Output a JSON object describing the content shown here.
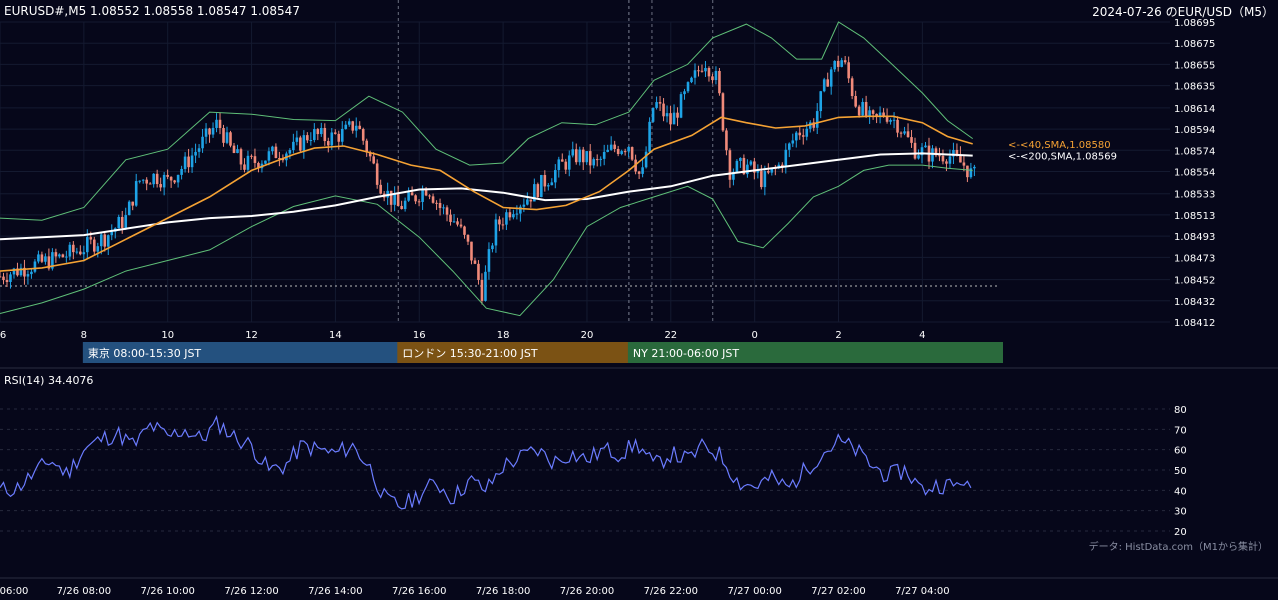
{
  "header": {
    "ohlc": "EURUSD#,M5 1.08552 1.08558 1.08547 1.08547",
    "title_right": "2024-07-26 のEUR/USD（M5）"
  },
  "sessions": [
    {
      "label": "東京 08:00-15:30 JST",
      "color": "#24517f"
    },
    {
      "label": "ロンドン 15:30-21:00 JST",
      "color": "#7b5214"
    },
    {
      "label": "NY 21:00-06:00 JST",
      "color": "#2a6a3c"
    }
  ],
  "rsi": {
    "label": "RSI(14) 34.4076"
  },
  "source_note": "データ: HistData.com（M1から集計）",
  "colors": {
    "bull": "#1ea3e6",
    "bear": "#f08a7a",
    "sma40": "#f5a234",
    "sma200": "#ffffff",
    "bollinger": "#5fbf78",
    "rsi": "#6b7cff"
  },
  "chart_data": [
    {
      "type": "candlestick",
      "ylim": [
        1.08412,
        1.08695
      ],
      "y_ticks": [
        "1.08695",
        "1.08675",
        "1.08655",
        "1.08635",
        "1.08614",
        "1.08594",
        "1.08574",
        "1.08554",
        "1.08533",
        "1.08513",
        "1.08493",
        "1.08473",
        "1.08452",
        "1.08432",
        "1.08412"
      ],
      "x_ticks": [
        "6",
        "8",
        "10",
        "12",
        "14",
        "16",
        "18",
        "20",
        "22",
        "0",
        "2",
        "4"
      ],
      "horizontal_ref_level": 1.08446,
      "annotations": [
        {
          "text": "<-<40,SMA,1.08580",
          "value": 1.0858,
          "color": "#f5a234"
        },
        {
          "text": "<-<200,SMA,1.08569",
          "value": 1.08569,
          "color": "#ffffff"
        }
      ],
      "close_path": [
        [
          6.0,
          1.08455
        ],
        [
          6.5,
          1.08462
        ],
        [
          7.0,
          1.08468
        ],
        [
          7.5,
          1.08474
        ],
        [
          8.0,
          1.08482
        ],
        [
          8.5,
          1.08492
        ],
        [
          9.0,
          1.0851
        ],
        [
          9.3,
          1.08545
        ],
        [
          9.7,
          1.0855
        ],
        [
          10.0,
          1.08545
        ],
        [
          10.4,
          1.0856
        ],
        [
          10.8,
          1.0858
        ],
        [
          11.2,
          1.086
        ],
        [
          11.5,
          1.08575
        ],
        [
          11.8,
          1.0856
        ],
        [
          12.2,
          1.08565
        ],
        [
          12.6,
          1.08572
        ],
        [
          13.0,
          1.08575
        ],
        [
          13.4,
          1.0859
        ],
        [
          13.8,
          1.08585
        ],
        [
          14.2,
          1.0859
        ],
        [
          14.5,
          1.086
        ],
        [
          14.8,
          1.0857
        ],
        [
          15.1,
          1.0854
        ],
        [
          15.5,
          1.0852
        ],
        [
          15.9,
          1.0853
        ],
        [
          16.2,
          1.0854
        ],
        [
          16.5,
          1.0852
        ],
        [
          16.9,
          1.08505
        ],
        [
          17.2,
          1.0848
        ],
        [
          17.5,
          1.0844
        ],
        [
          17.8,
          1.085
        ],
        [
          18.2,
          1.0852
        ],
        [
          18.6,
          1.0853
        ],
        [
          19.0,
          1.08545
        ],
        [
          19.4,
          1.0856
        ],
        [
          19.8,
          1.0857
        ],
        [
          20.2,
          1.0856
        ],
        [
          20.6,
          1.08575
        ],
        [
          21.0,
          1.0858
        ],
        [
          21.3,
          1.08545
        ],
        [
          21.6,
          1.0862
        ],
        [
          22.0,
          1.086
        ],
        [
          22.4,
          1.0863
        ],
        [
          22.8,
          1.0866
        ],
        [
          23.1,
          1.0864
        ],
        [
          23.4,
          1.08555
        ],
        [
          23.8,
          1.0856
        ],
        [
          24.2,
          1.08545
        ],
        [
          24.6,
          1.0856
        ],
        [
          25.0,
          1.0859
        ],
        [
          25.4,
          1.086
        ],
        [
          25.8,
          1.0865
        ],
        [
          26.1,
          1.0866
        ],
        [
          26.4,
          1.0862
        ],
        [
          26.8,
          1.086
        ],
        [
          27.1,
          1.0861
        ],
        [
          27.4,
          1.086
        ],
        [
          27.8,
          1.08575
        ],
        [
          28.2,
          1.0857
        ],
        [
          28.6,
          1.0857
        ],
        [
          29.0,
          1.0856
        ],
        [
          29.2,
          1.0855
        ]
      ],
      "sma40": [
        [
          6.0,
          1.0846
        ],
        [
          7.0,
          1.08463
        ],
        [
          8.0,
          1.0847
        ],
        [
          9.0,
          1.0849
        ],
        [
          10.0,
          1.0851
        ],
        [
          11.0,
          1.0853
        ],
        [
          12.0,
          1.08555
        ],
        [
          13.0,
          1.0857
        ],
        [
          13.5,
          1.08576
        ],
        [
          14.2,
          1.08578
        ],
        [
          15.0,
          1.0857
        ],
        [
          15.8,
          1.0856
        ],
        [
          16.5,
          1.08555
        ],
        [
          17.3,
          1.08535
        ],
        [
          18.0,
          1.0852
        ],
        [
          18.8,
          1.08518
        ],
        [
          19.5,
          1.08522
        ],
        [
          20.3,
          1.08535
        ],
        [
          21.0,
          1.08555
        ],
        [
          21.6,
          1.08575
        ],
        [
          22.5,
          1.08588
        ],
        [
          23.2,
          1.08605
        ],
        [
          23.8,
          1.086
        ],
        [
          24.5,
          1.08595
        ],
        [
          25.2,
          1.08597
        ],
        [
          26.0,
          1.08605
        ],
        [
          26.7,
          1.08606
        ],
        [
          27.3,
          1.08606
        ],
        [
          28.0,
          1.086
        ],
        [
          28.6,
          1.08587
        ],
        [
          29.2,
          1.0858
        ]
      ],
      "sma200": [
        [
          6.0,
          1.0849
        ],
        [
          7.0,
          1.08492
        ],
        [
          8.0,
          1.08494
        ],
        [
          9.0,
          1.085
        ],
        [
          10.0,
          1.08506
        ],
        [
          11.0,
          1.0851
        ],
        [
          12.0,
          1.08512
        ],
        [
          13.0,
          1.08516
        ],
        [
          14.0,
          1.08522
        ],
        [
          15.0,
          1.0853
        ],
        [
          16.0,
          1.08537
        ],
        [
          17.0,
          1.08538
        ],
        [
          18.0,
          1.08534
        ],
        [
          19.0,
          1.08527
        ],
        [
          20.0,
          1.08528
        ],
        [
          21.0,
          1.08535
        ],
        [
          22.0,
          1.0854
        ],
        [
          23.0,
          1.0855
        ],
        [
          24.0,
          1.08555
        ],
        [
          25.0,
          1.0856
        ],
        [
          26.0,
          1.08565
        ],
        [
          27.0,
          1.0857
        ],
        [
          28.0,
          1.08571
        ],
        [
          29.2,
          1.08569
        ]
      ],
      "boll_upper": [
        [
          6.0,
          1.0851
        ],
        [
          7.0,
          1.08508
        ],
        [
          8.0,
          1.0852
        ],
        [
          9.0,
          1.08565
        ],
        [
          10.0,
          1.08575
        ],
        [
          11.0,
          1.0861
        ],
        [
          12.0,
          1.08608
        ],
        [
          13.0,
          1.08603
        ],
        [
          14.0,
          1.08602
        ],
        [
          14.8,
          1.08625
        ],
        [
          15.6,
          1.0861
        ],
        [
          16.4,
          1.08575
        ],
        [
          17.2,
          1.0856
        ],
        [
          18.0,
          1.08562
        ],
        [
          18.6,
          1.08585
        ],
        [
          19.4,
          1.086
        ],
        [
          20.2,
          1.08598
        ],
        [
          21.0,
          1.0861
        ],
        [
          21.6,
          1.0864
        ],
        [
          22.4,
          1.08655
        ],
        [
          23.0,
          1.0868
        ],
        [
          23.8,
          1.08693
        ],
        [
          24.4,
          1.0868
        ],
        [
          25.0,
          1.0866
        ],
        [
          25.6,
          1.0866
        ],
        [
          26.0,
          1.08695
        ],
        [
          26.6,
          1.0868
        ],
        [
          27.2,
          1.08658
        ],
        [
          28.0,
          1.08628
        ],
        [
          28.6,
          1.08602
        ],
        [
          29.2,
          1.08585
        ]
      ],
      "boll_lower": [
        [
          6.0,
          1.0842
        ],
        [
          7.0,
          1.0843
        ],
        [
          8.0,
          1.08443
        ],
        [
          9.0,
          1.0846
        ],
        [
          10.0,
          1.0847
        ],
        [
          11.0,
          1.0848
        ],
        [
          12.0,
          1.08502
        ],
        [
          13.0,
          1.08521
        ],
        [
          14.0,
          1.08531
        ],
        [
          15.0,
          1.08523
        ],
        [
          16.0,
          1.08492
        ],
        [
          16.8,
          1.0846
        ],
        [
          17.6,
          1.08425
        ],
        [
          18.4,
          1.08418
        ],
        [
          19.2,
          1.08452
        ],
        [
          20.0,
          1.08502
        ],
        [
          20.8,
          1.0852
        ],
        [
          21.6,
          1.0853
        ],
        [
          22.4,
          1.0854
        ],
        [
          23.0,
          1.08528
        ],
        [
          23.6,
          1.08488
        ],
        [
          24.2,
          1.08482
        ],
        [
          24.8,
          1.08505
        ],
        [
          25.4,
          1.0853
        ],
        [
          26.0,
          1.0854
        ],
        [
          26.6,
          1.08555
        ],
        [
          27.2,
          1.0856
        ],
        [
          28.0,
          1.0856
        ],
        [
          28.6,
          1.08557
        ],
        [
          29.2,
          1.08555
        ]
      ]
    },
    {
      "type": "line",
      "series_label": "RSI(14)",
      "ylim": [
        20,
        80
      ],
      "y_ticks": [
        "80",
        "70",
        "60",
        "50",
        "40",
        "30",
        "20"
      ],
      "x_ticks": [
        "06:00",
        "7/26 08:00",
        "7/26 10:00",
        "7/26 12:00",
        "7/26 14:00",
        "7/26 16:00",
        "7/26 18:00",
        "7/26 20:00",
        "7/26 22:00",
        "7/27 00:00",
        "7/27 02:00",
        "7/27 04:00"
      ],
      "path": [
        [
          6.0,
          40
        ],
        [
          6.4,
          41
        ],
        [
          6.8,
          48
        ],
        [
          7.2,
          55
        ],
        [
          7.6,
          48
        ],
        [
          8.0,
          60
        ],
        [
          8.4,
          65
        ],
        [
          8.8,
          68
        ],
        [
          9.2,
          62
        ],
        [
          9.6,
          72
        ],
        [
          10.0,
          66
        ],
        [
          10.4,
          70
        ],
        [
          10.8,
          65
        ],
        [
          11.2,
          73
        ],
        [
          11.6,
          66
        ],
        [
          12.0,
          62
        ],
        [
          12.4,
          50
        ],
        [
          12.8,
          52
        ],
        [
          13.2,
          62
        ],
        [
          13.6,
          60
        ],
        [
          14.0,
          58
        ],
        [
          14.4,
          62
        ],
        [
          14.8,
          52
        ],
        [
          15.2,
          35
        ],
        [
          15.6,
          32
        ],
        [
          16.0,
          38
        ],
        [
          16.4,
          44
        ],
        [
          16.8,
          36
        ],
        [
          17.2,
          45
        ],
        [
          17.6,
          40
        ],
        [
          18.0,
          52
        ],
        [
          18.4,
          56
        ],
        [
          18.8,
          60
        ],
        [
          19.2,
          54
        ],
        [
          19.6,
          58
        ],
        [
          20.0,
          55
        ],
        [
          20.4,
          60
        ],
        [
          20.8,
          58
        ],
        [
          21.2,
          63
        ],
        [
          21.6,
          52
        ],
        [
          22.0,
          58
        ],
        [
          22.4,
          55
        ],
        [
          22.8,
          62
        ],
        [
          23.2,
          57
        ],
        [
          23.6,
          44
        ],
        [
          24.0,
          42
        ],
        [
          24.4,
          46
        ],
        [
          24.8,
          41
        ],
        [
          25.2,
          50
        ],
        [
          25.6,
          58
        ],
        [
          26.0,
          64
        ],
        [
          26.4,
          60
        ],
        [
          26.8,
          52
        ],
        [
          27.2,
          47
        ],
        [
          27.6,
          50
        ],
        [
          28.0,
          40
        ],
        [
          28.4,
          43
        ],
        [
          28.8,
          42
        ],
        [
          29.0,
          46
        ],
        [
          29.2,
          35
        ]
      ]
    }
  ]
}
